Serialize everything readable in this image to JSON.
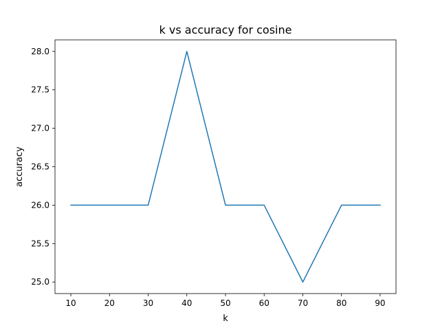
{
  "chart_data": {
    "type": "line",
    "title": "k vs accuracy for cosine",
    "xlabel": "k",
    "ylabel": "accuracy",
    "x": [
      10,
      20,
      30,
      40,
      50,
      60,
      70,
      80,
      90
    ],
    "series": [
      {
        "values": [
          26,
          26,
          26,
          28,
          26,
          26,
          25,
          26,
          26
        ],
        "color": "#1f77b4"
      }
    ],
    "xticks": [
      10,
      20,
      30,
      40,
      50,
      60,
      70,
      80,
      90
    ],
    "yticks": [
      "25.0",
      "25.5",
      "26.0",
      "26.5",
      "27.0",
      "27.5",
      "28.0"
    ],
    "xlim": [
      5.9,
      94.1
    ],
    "ylim": [
      24.85,
      28.15
    ],
    "grid": false,
    "legend": "none"
  }
}
